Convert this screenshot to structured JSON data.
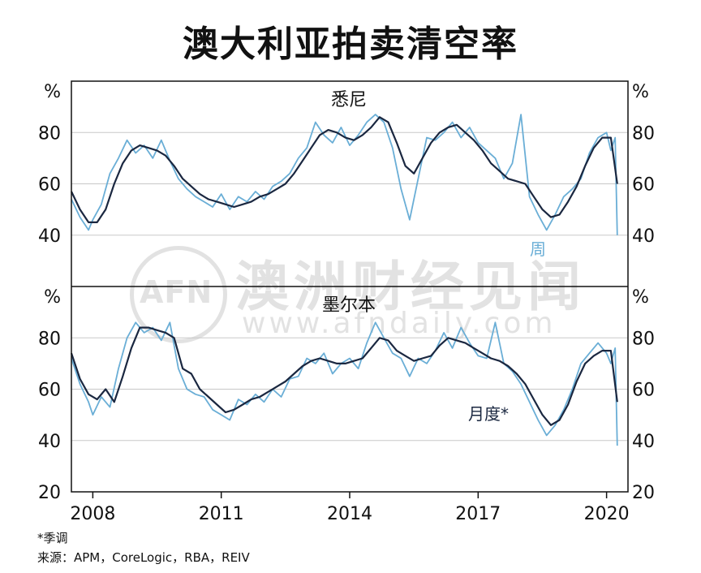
{
  "title": "澳大利亚拍卖清空率",
  "footnote": "*季调",
  "source": "来源：APM，CoreLogic，RBA，REIV",
  "watermark": {
    "logo": "AFN",
    "name": "澳洲财经见闻",
    "url": "www.afndaily.com"
  },
  "colors": {
    "smooth": "#1a2740",
    "raw": "#6aaed6",
    "grid": "#c8c8c8"
  },
  "chart_data": [
    {
      "type": "line",
      "panel_title": "悉尼",
      "ylabel_left": "%",
      "ylabel_right": "%",
      "ylim": [
        20,
        100
      ],
      "yticks": [
        40,
        60,
        80
      ],
      "xlim": [
        2007.5,
        2020.5
      ],
      "series": [
        {
          "name": "周",
          "style": "raw",
          "x": [
            2007.5,
            2007.7,
            2007.9,
            2008.0,
            2008.2,
            2008.4,
            2008.6,
            2008.8,
            2009.0,
            2009.2,
            2009.4,
            2009.6,
            2009.8,
            2010.0,
            2010.2,
            2010.4,
            2010.6,
            2010.8,
            2011.0,
            2011.2,
            2011.4,
            2011.6,
            2011.8,
            2012.0,
            2012.2,
            2012.4,
            2012.6,
            2012.8,
            2013.0,
            2013.2,
            2013.4,
            2013.6,
            2013.8,
            2014.0,
            2014.2,
            2014.4,
            2014.6,
            2014.8,
            2015.0,
            2015.2,
            2015.4,
            2015.6,
            2015.8,
            2016.0,
            2016.2,
            2016.4,
            2016.6,
            2016.8,
            2017.0,
            2017.2,
            2017.4,
            2017.6,
            2017.8,
            2018.0,
            2018.2,
            2018.4,
            2018.6,
            2018.8,
            2019.0,
            2019.2,
            2019.4,
            2019.6,
            2019.8,
            2020.0,
            2020.1,
            2020.2,
            2020.25
          ],
          "y": [
            54,
            47,
            42,
            46,
            52,
            64,
            70,
            77,
            72,
            75,
            70,
            77,
            69,
            62,
            58,
            55,
            53,
            51,
            56,
            50,
            55,
            53,
            57,
            54,
            59,
            61,
            64,
            70,
            74,
            84,
            79,
            76,
            82,
            75,
            79,
            84,
            87,
            84,
            74,
            58,
            46,
            62,
            78,
            77,
            80,
            84,
            78,
            82,
            76,
            73,
            70,
            62,
            68,
            87,
            55,
            48,
            42,
            48,
            55,
            58,
            62,
            72,
            78,
            80,
            73,
            78,
            40
          ]
        },
        {
          "name": "",
          "style": "smooth",
          "x": [
            2007.5,
            2007.7,
            2007.9,
            2008.1,
            2008.3,
            2008.5,
            2008.7,
            2008.9,
            2009.1,
            2009.3,
            2009.5,
            2009.7,
            2009.9,
            2010.1,
            2010.3,
            2010.5,
            2010.7,
            2010.9,
            2011.1,
            2011.3,
            2011.5,
            2011.7,
            2011.9,
            2012.1,
            2012.3,
            2012.5,
            2012.7,
            2012.9,
            2013.1,
            2013.3,
            2013.5,
            2013.7,
            2013.9,
            2014.1,
            2014.3,
            2014.5,
            2014.7,
            2014.9,
            2015.1,
            2015.3,
            2015.5,
            2015.7,
            2015.9,
            2016.1,
            2016.3,
            2016.5,
            2016.7,
            2016.9,
            2017.1,
            2017.3,
            2017.5,
            2017.7,
            2017.9,
            2018.1,
            2018.3,
            2018.5,
            2018.7,
            2018.9,
            2019.1,
            2019.3,
            2019.5,
            2019.7,
            2019.9,
            2020.1,
            2020.25
          ],
          "y": [
            57,
            50,
            45,
            45,
            50,
            60,
            68,
            73,
            75,
            74,
            73,
            71,
            67,
            62,
            59,
            56,
            54,
            53,
            52,
            51,
            52,
            53,
            55,
            56,
            58,
            60,
            64,
            69,
            74,
            79,
            81,
            80,
            78,
            77,
            79,
            82,
            86,
            84,
            76,
            67,
            64,
            70,
            76,
            80,
            82,
            83,
            80,
            77,
            73,
            68,
            65,
            62,
            61,
            60,
            55,
            50,
            47,
            48,
            53,
            59,
            67,
            74,
            78,
            78,
            60
          ]
        }
      ]
    },
    {
      "type": "line",
      "panel_title": "墨尔本",
      "ylabel_left": "%",
      "ylabel_right": "%",
      "ylim": [
        20,
        100
      ],
      "yticks": [
        20,
        40,
        60,
        80
      ],
      "xlim": [
        2007.5,
        2020.5
      ],
      "xticks": [
        "2008",
        "2011",
        "2014",
        "2017",
        "2020"
      ],
      "series": [
        {
          "name": "",
          "style": "raw",
          "x": [
            2007.5,
            2007.7,
            2007.9,
            2008.0,
            2008.2,
            2008.4,
            2008.6,
            2008.8,
            2009.0,
            2009.2,
            2009.4,
            2009.6,
            2009.8,
            2010.0,
            2010.2,
            2010.4,
            2010.6,
            2010.8,
            2011.0,
            2011.2,
            2011.4,
            2011.6,
            2011.8,
            2012.0,
            2012.2,
            2012.4,
            2012.6,
            2012.8,
            2013.0,
            2013.2,
            2013.4,
            2013.6,
            2013.8,
            2014.0,
            2014.2,
            2014.4,
            2014.6,
            2014.8,
            2015.0,
            2015.2,
            2015.4,
            2015.6,
            2015.8,
            2016.0,
            2016.2,
            2016.4,
            2016.6,
            2016.8,
            2017.0,
            2017.2,
            2017.4,
            2017.6,
            2017.8,
            2018.0,
            2018.2,
            2018.4,
            2018.6,
            2018.8,
            2019.0,
            2019.2,
            2019.4,
            2019.6,
            2019.8,
            2020.0,
            2020.1,
            2020.2,
            2020.25
          ],
          "y": [
            72,
            62,
            55,
            50,
            57,
            53,
            68,
            80,
            86,
            82,
            84,
            79,
            86,
            68,
            60,
            58,
            57,
            52,
            50,
            48,
            56,
            54,
            58,
            55,
            60,
            57,
            64,
            65,
            72,
            70,
            74,
            66,
            70,
            72,
            68,
            78,
            86,
            80,
            74,
            72,
            65,
            72,
            70,
            75,
            82,
            76,
            84,
            78,
            73,
            72,
            86,
            70,
            67,
            62,
            55,
            48,
            42,
            46,
            52,
            60,
            70,
            74,
            78,
            74,
            70,
            76,
            38
          ]
        },
        {
          "name": "月度*",
          "style": "smooth",
          "x": [
            2007.5,
            2007.7,
            2007.9,
            2008.1,
            2008.3,
            2008.5,
            2008.7,
            2008.9,
            2009.1,
            2009.3,
            2009.5,
            2009.7,
            2009.9,
            2010.1,
            2010.3,
            2010.5,
            2010.7,
            2010.9,
            2011.1,
            2011.3,
            2011.5,
            2011.7,
            2011.9,
            2012.1,
            2012.3,
            2012.5,
            2012.7,
            2012.9,
            2013.1,
            2013.3,
            2013.5,
            2013.7,
            2013.9,
            2014.1,
            2014.3,
            2014.5,
            2014.7,
            2014.9,
            2015.1,
            2015.3,
            2015.5,
            2015.7,
            2015.9,
            2016.1,
            2016.3,
            2016.5,
            2016.7,
            2016.9,
            2017.1,
            2017.3,
            2017.5,
            2017.7,
            2017.9,
            2018.1,
            2018.3,
            2018.5,
            2018.7,
            2018.9,
            2019.1,
            2019.3,
            2019.5,
            2019.7,
            2019.9,
            2020.1,
            2020.25
          ],
          "y": [
            74,
            64,
            58,
            56,
            60,
            55,
            65,
            76,
            84,
            84,
            83,
            82,
            80,
            68,
            66,
            60,
            57,
            54,
            51,
            52,
            54,
            56,
            57,
            59,
            61,
            63,
            66,
            69,
            71,
            72,
            71,
            70,
            70,
            71,
            72,
            76,
            80,
            79,
            75,
            73,
            71,
            72,
            73,
            77,
            80,
            79,
            78,
            76,
            74,
            72,
            71,
            69,
            66,
            62,
            56,
            50,
            46,
            48,
            54,
            63,
            70,
            73,
            75,
            75,
            55
          ]
        }
      ]
    }
  ]
}
